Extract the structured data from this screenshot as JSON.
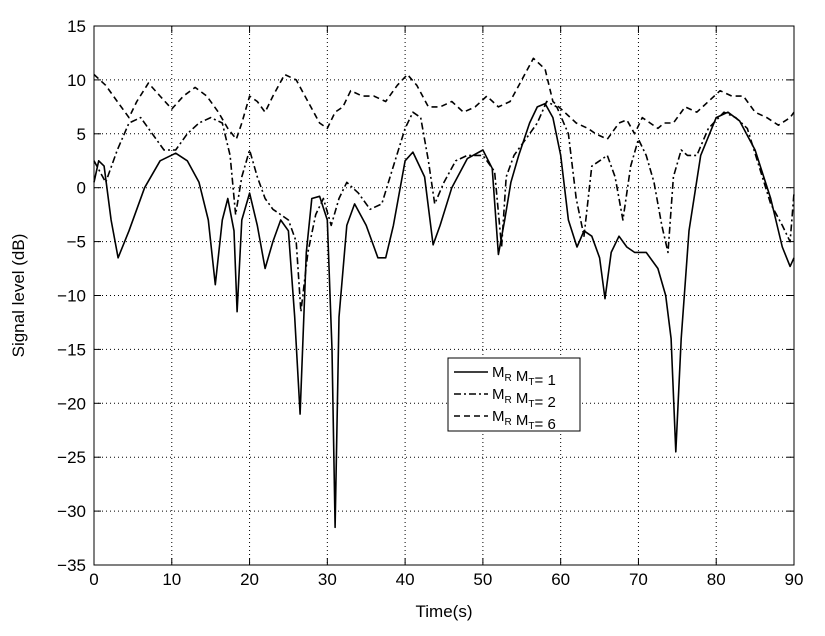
{
  "chart_data": {
    "type": "line",
    "xlabel": "Time(s)",
    "ylabel": "Signal level (dB)",
    "xlim": [
      0,
      90
    ],
    "ylim": [
      -35,
      15
    ],
    "xticks": [
      "0",
      "10",
      "20",
      "30",
      "40",
      "50",
      "60",
      "70",
      "80",
      "90"
    ],
    "yticks": [
      "15",
      "10",
      "5",
      "0",
      "-5",
      "-10",
      "-15",
      "-20",
      "-25",
      "-30",
      "-35"
    ],
    "grid": true,
    "legend_position": "center-right",
    "series": [
      {
        "name": "M_R M_T = 1",
        "legend": {
          "a": "M",
          "a_sub": "R",
          "b": "M",
          "b_sub": "T",
          "rest": "= 1"
        },
        "style": "solid",
        "x": [
          0,
          0.6,
          1.3,
          2.2,
          3.1,
          4.5,
          6.5,
          8.5,
          10.5,
          12,
          13.5,
          14.7,
          15.6,
          16.5,
          17.2,
          18.0,
          18.4,
          19.0,
          20.0,
          21.0,
          22.0,
          23.0,
          24.0,
          25.0,
          25.8,
          26.5,
          27.3,
          28.0,
          29.0,
          30.0,
          30.6,
          31.0,
          31.5,
          32.5,
          33.5,
          35,
          36.5,
          37.5,
          38.5,
          40,
          41,
          42.5,
          43.6,
          44.5,
          46,
          48,
          50,
          51.2,
          52.0,
          52.8,
          53.6,
          54.6,
          56,
          57,
          58,
          59,
          60,
          61,
          62.1,
          63,
          64,
          65,
          65.7,
          66.5,
          67.5,
          68.5,
          69.5,
          71,
          72.5,
          73.5,
          74.2,
          74.8,
          75.5,
          76.5,
          78,
          80,
          81.5,
          83,
          85,
          87,
          88.5,
          89.5,
          90
        ],
        "y": [
          0.5,
          2.5,
          2.0,
          -3.0,
          -6.5,
          -4.0,
          0.0,
          2.5,
          3.2,
          2.5,
          0.5,
          -3.0,
          -9.0,
          -3.0,
          -1.0,
          -4.0,
          -11.5,
          -3.0,
          -0.5,
          -3.5,
          -7.5,
          -5.0,
          -3.0,
          -4.0,
          -12.0,
          -21.0,
          -6.0,
          -1.0,
          -0.8,
          -3.0,
          -15.0,
          -31.5,
          -12.0,
          -3.5,
          -1.5,
          -3.5,
          -6.5,
          -6.5,
          -3.5,
          2.5,
          3.3,
          1.0,
          -5.3,
          -3.5,
          0.0,
          2.7,
          3.5,
          1.8,
          -6.2,
          -3.0,
          0.5,
          3.0,
          6.0,
          7.5,
          7.8,
          6.5,
          3.0,
          -3.0,
          -5.5,
          -4.0,
          -4.5,
          -6.5,
          -10.3,
          -6.0,
          -4.5,
          -5.5,
          -6.0,
          -6.0,
          -7.5,
          -10.0,
          -14.0,
          -24.5,
          -14.0,
          -4.0,
          3.0,
          6.5,
          7.0,
          6.2,
          3.5,
          -1.0,
          -5.5,
          -7.3,
          -6.5
        ]
      },
      {
        "name": "M_R M_T = 2",
        "legend": {
          "a": "M",
          "a_sub": "R",
          "b": "M",
          "b_sub": "T",
          "rest": "= 2"
        },
        "style": "dashdot",
        "x": [
          0,
          1.5,
          3,
          4.5,
          6,
          7.5,
          9,
          10.5,
          12,
          13.5,
          15,
          16.5,
          17.5,
          18.2,
          19,
          20,
          21,
          22,
          23,
          24,
          25,
          26,
          26.6,
          27.5,
          28.5,
          29.5,
          30.5,
          31.5,
          32.5,
          34,
          35.5,
          37,
          38.5,
          40,
          41,
          42,
          43,
          43.8,
          45,
          46.5,
          48,
          50,
          51.5,
          52.4,
          53,
          54,
          55.5,
          57,
          58.2,
          59.5,
          61,
          62,
          63,
          64,
          65,
          66,
          67,
          68,
          69,
          70,
          71,
          72,
          73,
          73.8,
          74.5,
          75.5,
          76.3,
          77.5,
          79,
          81,
          82.5,
          84,
          85.5,
          87,
          88.5,
          89.5,
          90
        ],
        "y": [
          2.5,
          0.5,
          3.5,
          6.0,
          6.5,
          5.0,
          3.5,
          3.5,
          5.0,
          6.0,
          6.5,
          6.0,
          3.0,
          -2.5,
          1.0,
          3.5,
          1.0,
          -1.0,
          -2.0,
          -2.5,
          -3.0,
          -5.0,
          -11.5,
          -6.0,
          -2.5,
          -1.0,
          -3.5,
          -1.0,
          0.5,
          -0.5,
          -2.0,
          -1.5,
          2.0,
          5.5,
          7.0,
          6.5,
          2.5,
          -1.5,
          0.5,
          2.5,
          3.0,
          3.0,
          1.5,
          -5.5,
          1.0,
          3.0,
          4.5,
          6.0,
          8.0,
          7.5,
          5.0,
          -1.0,
          -4.5,
          2.0,
          2.5,
          3.0,
          1.0,
          -3.0,
          2.0,
          4.5,
          3.0,
          0.5,
          -3.5,
          -6.0,
          1.0,
          3.5,
          3.0,
          3.0,
          5.5,
          7.0,
          6.5,
          5.5,
          2.0,
          -1.5,
          -3.5,
          -5.0,
          -0.5
        ]
      },
      {
        "name": "M_R M_T = 6",
        "legend": {
          "a": "M",
          "a_sub": "R",
          "b": "M",
          "b_sub": "T",
          "rest": "= 6"
        },
        "style": "dashed",
        "x": [
          0,
          1.5,
          3,
          4.5,
          5.5,
          7,
          8.5,
          10,
          11.5,
          13,
          14.5,
          16,
          17.2,
          18.3,
          19,
          20,
          21,
          22,
          23,
          24.5,
          26,
          27.5,
          29,
          30,
          31,
          32,
          33,
          34.5,
          36,
          37.5,
          39,
          40.3,
          41.5,
          43,
          44.5,
          46,
          47.5,
          49,
          50.5,
          52,
          53.5,
          55,
          56.5,
          58,
          59,
          60.5,
          62,
          63.5,
          64.5,
          66,
          67.5,
          68.5,
          69.5,
          70.5,
          71.5,
          72.5,
          73.3,
          74.5,
          76,
          77.5,
          79,
          80.5,
          82,
          83.5,
          85,
          86.5,
          88,
          89.5,
          90
        ],
        "y": [
          10.5,
          9.5,
          8.0,
          6.5,
          8.0,
          9.7,
          8.5,
          7.3,
          8.5,
          9.3,
          8.5,
          7.0,
          5.5,
          4.5,
          6.0,
          8.5,
          8.0,
          7.0,
          8.5,
          10.5,
          10.0,
          8.0,
          6.0,
          5.5,
          7.0,
          7.5,
          9.0,
          8.5,
          8.5,
          8.0,
          9.5,
          10.5,
          9.5,
          7.5,
          7.5,
          8.0,
          7.0,
          7.5,
          8.5,
          7.5,
          8.0,
          10.0,
          12.0,
          11.0,
          8.0,
          7.0,
          6.0,
          5.5,
          5.0,
          4.5,
          6.0,
          6.3,
          5.0,
          6.5,
          6.0,
          5.5,
          6.0,
          6.0,
          7.5,
          7.0,
          8.0,
          9.0,
          8.5,
          8.5,
          7.0,
          6.5,
          5.8,
          6.5,
          7.0
        ]
      }
    ]
  }
}
